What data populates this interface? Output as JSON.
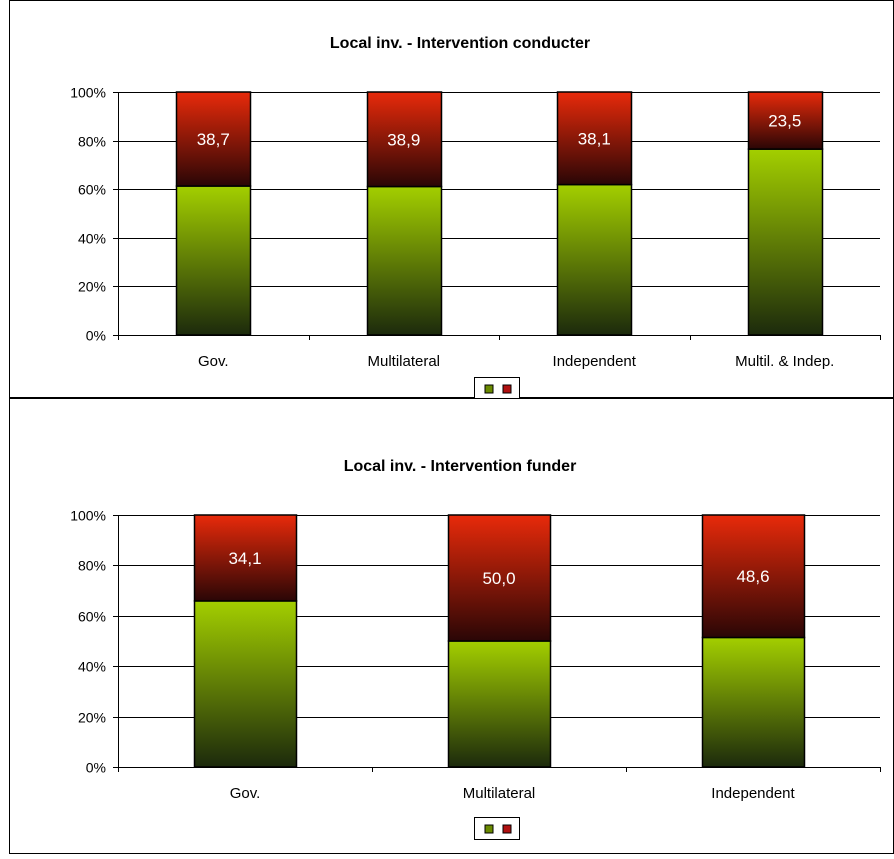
{
  "colors": {
    "green_top": "#a3cf00",
    "green_bottom": "#1c2a0c",
    "red_top": "#e82a0a",
    "red_bottom": "#2a0606",
    "label_text": "#ffffff",
    "grid": "#000000"
  },
  "chart_data": [
    {
      "type": "bar",
      "stacked": true,
      "percent_stacked": true,
      "title": "Local inv. - Intervention conducter",
      "categories": [
        "Gov.",
        "Multilateral",
        "Independent",
        "Multil. & Indep."
      ],
      "series": [
        {
          "values": [
            61.3,
            61.1,
            61.9,
            76.5
          ],
          "color": "green"
        },
        {
          "values": [
            38.7,
            38.9,
            38.1,
            23.5
          ],
          "color": "red"
        }
      ],
      "data_labels": [
        "38,7",
        "38,9",
        "38,1",
        "23,5"
      ],
      "ylim": [
        0,
        100
      ],
      "yticks": [
        0,
        20,
        40,
        60,
        80,
        100
      ],
      "ytick_labels": [
        "0%",
        "20%",
        "40%",
        "60%",
        "80%",
        "100%"
      ],
      "grid": true,
      "legend": "bottom-center",
      "xlabel": "",
      "ylabel": ""
    },
    {
      "type": "bar",
      "stacked": true,
      "percent_stacked": true,
      "title": "Local inv. - Intervention funder",
      "categories": [
        "Gov.",
        "Multilateral",
        "Independent"
      ],
      "series": [
        {
          "values": [
            65.9,
            50.0,
            51.4
          ],
          "color": "green"
        },
        {
          "values": [
            34.1,
            50.0,
            48.6
          ],
          "color": "red"
        }
      ],
      "data_labels": [
        "34,1",
        "50,0",
        "48,6"
      ],
      "ylim": [
        0,
        100
      ],
      "yticks": [
        0,
        20,
        40,
        60,
        80,
        100
      ],
      "ytick_labels": [
        "0%",
        "20%",
        "40%",
        "60%",
        "80%",
        "100%"
      ],
      "grid": true,
      "legend": "bottom-center",
      "xlabel": "",
      "ylabel": ""
    }
  ]
}
